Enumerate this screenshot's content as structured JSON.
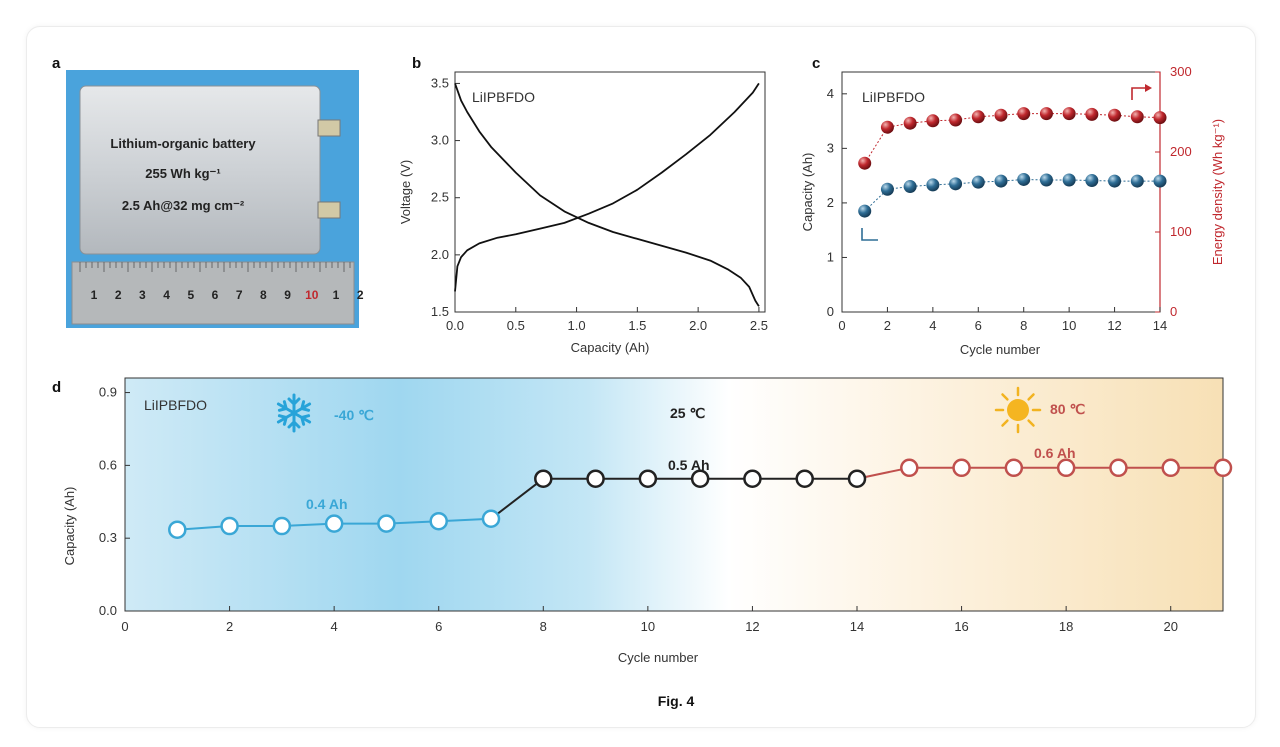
{
  "figure_caption": "Fig. 4",
  "panel_a": {
    "label": "a",
    "battery_lines": [
      "Lithium-organic battery",
      "255 Wh kg⁻¹",
      "2.5 Ah@32 mg cm⁻²"
    ],
    "ruler_numbers": [
      "1",
      "2",
      "3",
      "4",
      "5",
      "6",
      "7",
      "8",
      "9",
      "10",
      "1",
      "2"
    ]
  },
  "chart_data": [
    {
      "panel": "b",
      "type": "line",
      "annotation": "LiIPBFDO",
      "xlabel": "Capacity (Ah)",
      "ylabel": "Voltage (V)",
      "xlim": [
        0,
        2.55
      ],
      "ylim": [
        1.5,
        3.6
      ],
      "xticks": [
        "0.0",
        "0.5",
        "1.0",
        "1.5",
        "2.0",
        "2.5"
      ],
      "yticks": [
        "1.5",
        "2.0",
        "2.5",
        "3.0",
        "3.5"
      ],
      "series": [
        {
          "x": [
            0,
            0.02,
            0.05,
            0.1,
            0.2,
            0.35,
            0.5,
            0.7,
            0.9,
            1.1,
            1.3,
            1.5,
            1.7,
            1.9,
            2.1,
            2.3,
            2.45,
            2.5
          ],
          "y": [
            1.68,
            1.9,
            1.98,
            2.04,
            2.1,
            2.15,
            2.18,
            2.23,
            2.28,
            2.36,
            2.45,
            2.57,
            2.72,
            2.88,
            3.05,
            3.25,
            3.42,
            3.5
          ]
        },
        {
          "x": [
            0,
            0.05,
            0.1,
            0.2,
            0.3,
            0.5,
            0.7,
            0.9,
            1.1,
            1.3,
            1.5,
            1.7,
            1.9,
            2.1,
            2.25,
            2.35,
            2.42,
            2.47,
            2.5
          ],
          "y": [
            3.5,
            3.35,
            3.25,
            3.08,
            2.94,
            2.72,
            2.52,
            2.38,
            2.28,
            2.2,
            2.14,
            2.08,
            2.02,
            1.95,
            1.87,
            1.8,
            1.72,
            1.6,
            1.55
          ]
        }
      ],
      "color": "#111111"
    },
    {
      "panel": "c",
      "type": "scatter",
      "annotation": "LiIPBFDO",
      "xlabel": "Cycle number",
      "ylabel": "Capacity (Ah)",
      "y2label": "Energy density (Wh kg⁻¹)",
      "xlim": [
        0,
        14
      ],
      "ylim": [
        0,
        4.4
      ],
      "y2lim": [
        0,
        300
      ],
      "xticks": [
        "0",
        "2",
        "4",
        "6",
        "8",
        "10",
        "12",
        "14"
      ],
      "yticks": [
        "0",
        "1",
        "2",
        "3",
        "4"
      ],
      "y2ticks": [
        "0",
        "100",
        "200",
        "300"
      ],
      "series": [
        {
          "axis": "left",
          "x": [
            1,
            2,
            3,
            4,
            5,
            6,
            7,
            8,
            9,
            10,
            11,
            12,
            13,
            14
          ],
          "y": [
            1.85,
            2.25,
            2.3,
            2.33,
            2.35,
            2.38,
            2.4,
            2.43,
            2.42,
            2.42,
            2.41,
            2.4,
            2.4,
            2.4
          ],
          "color": "#2f6e96"
        },
        {
          "axis": "right",
          "x": [
            1,
            2,
            3,
            4,
            5,
            6,
            7,
            8,
            9,
            10,
            11,
            12,
            13,
            14
          ],
          "y": [
            186,
            231,
            236,
            239,
            240,
            244,
            246,
            248,
            248,
            248,
            247,
            246,
            244,
            243
          ],
          "color": "#c0282e"
        }
      ]
    },
    {
      "panel": "d",
      "type": "line",
      "annotation": "LiIPBFDO",
      "xlabel": "Cycle number",
      "ylabel": "Capacity (Ah)",
      "xlim": [
        0,
        21
      ],
      "ylim": [
        0,
        0.96
      ],
      "xticks": [
        "0",
        "2",
        "4",
        "6",
        "8",
        "10",
        "12",
        "14",
        "16",
        "18",
        "20"
      ],
      "yticks": [
        "0.0",
        "0.3",
        "0.6",
        "0.9"
      ],
      "series": [
        {
          "x": [
            1,
            2,
            3,
            4,
            5,
            6,
            7
          ],
          "y": [
            0.335,
            0.35,
            0.35,
            0.36,
            0.36,
            0.37,
            0.38
          ],
          "color": "#3aa7d6"
        },
        {
          "x": [
            8,
            9,
            10,
            11,
            12,
            13,
            14
          ],
          "y": [
            0.545,
            0.545,
            0.545,
            0.545,
            0.545,
            0.545,
            0.545
          ],
          "color": "#222222"
        },
        {
          "x": [
            15,
            16,
            17,
            18,
            19,
            20,
            21
          ],
          "y": [
            0.59,
            0.59,
            0.59,
            0.59,
            0.59,
            0.59,
            0.59
          ],
          "color": "#c0504d"
        }
      ],
      "conditions": [
        {
          "temp": "-40 ℃",
          "capacity": "0.4 Ah",
          "color": "#3aa7d6"
        },
        {
          "temp": "25 ℃",
          "capacity": "0.5 Ah",
          "color": "#222222"
        },
        {
          "temp": "80 ℃",
          "capacity": "0.6 Ah",
          "color": "#c0504d"
        }
      ]
    }
  ]
}
